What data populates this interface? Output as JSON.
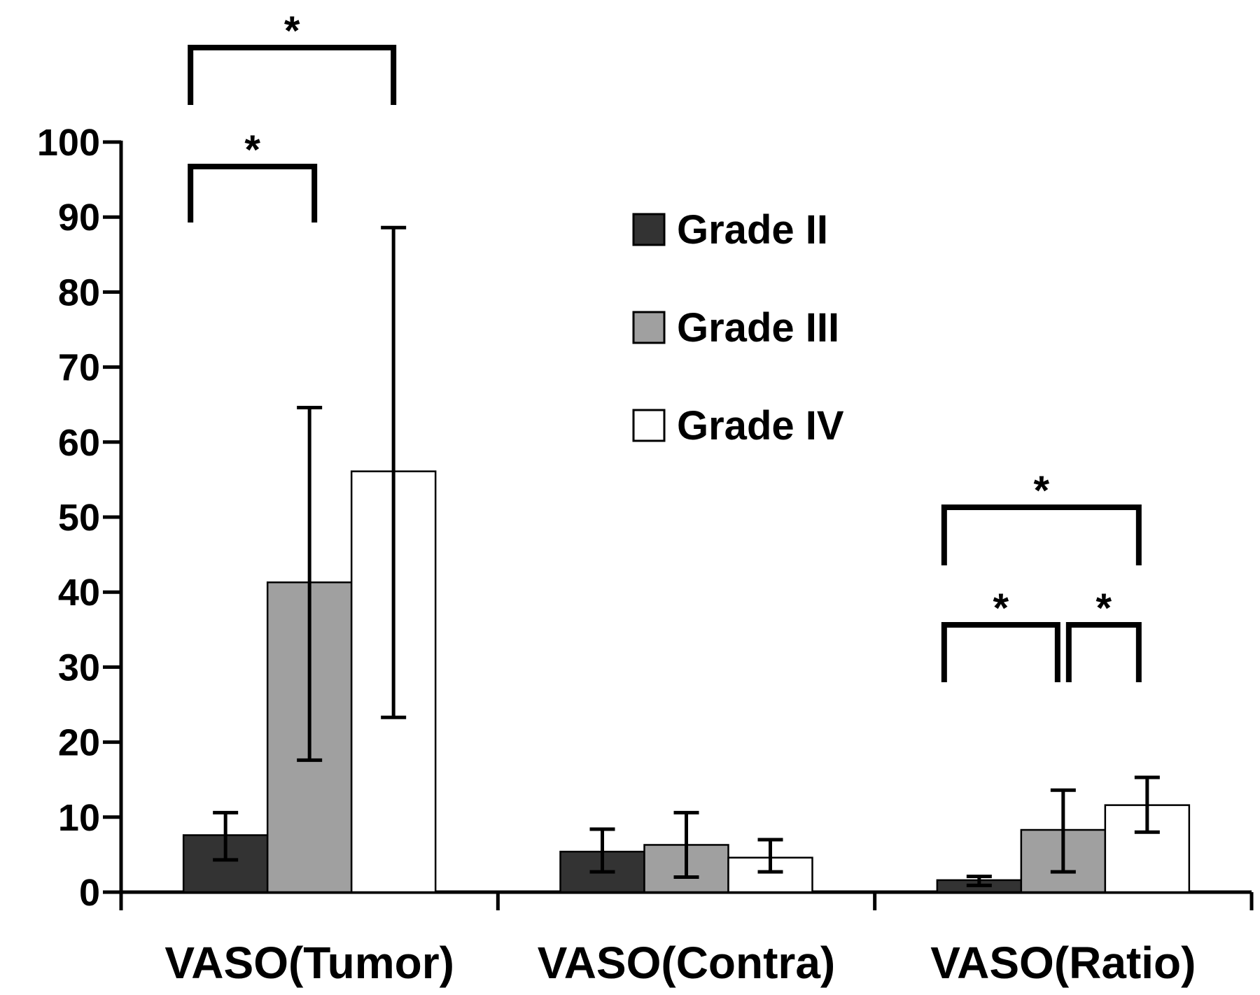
{
  "chart_data": {
    "type": "bar",
    "title": "",
    "xlabel": "",
    "ylabel": "",
    "ylim": [
      0,
      100
    ],
    "yticks": [
      0,
      10,
      20,
      30,
      40,
      50,
      60,
      70,
      80,
      90,
      100
    ],
    "categories": [
      "VASO(Tumor)",
      "VASO(Contra)",
      "VASO(Ratio)"
    ],
    "series": [
      {
        "name": "Grade II",
        "color": "#333333",
        "values": [
          7.6,
          5.4,
          1.6
        ],
        "error_low": [
          4.3,
          2.7,
          0.9
        ],
        "error_high": [
          10.6,
          8.4,
          2.1
        ]
      },
      {
        "name": "Grade III",
        "color": "#a0a0a0",
        "values": [
          41.3,
          6.3,
          8.3
        ],
        "error_low": [
          17.6,
          2.0,
          2.7
        ],
        "error_high": [
          64.6,
          10.6,
          13.6
        ]
      },
      {
        "name": "Grade IV",
        "color": "#ffffff",
        "values": [
          56.1,
          4.6,
          11.6
        ],
        "error_low": [
          23.3,
          2.7,
          8.0
        ],
        "error_high": [
          88.6,
          7.0,
          15.3
        ]
      }
    ],
    "legend": {
      "position": "top-center"
    },
    "grid": false,
    "significance": [
      {
        "category": 0,
        "from_series": 0,
        "to_series": 2,
        "label": "*"
      },
      {
        "category": 0,
        "from_series": 0,
        "to_series": 1,
        "label": "*"
      },
      {
        "category": 2,
        "from_series": 0,
        "to_series": 2,
        "label": "*"
      },
      {
        "category": 2,
        "from_series": 0,
        "to_series": 1,
        "label": "*"
      },
      {
        "category": 2,
        "from_series": 1,
        "to_series": 2,
        "label": "*"
      }
    ]
  }
}
